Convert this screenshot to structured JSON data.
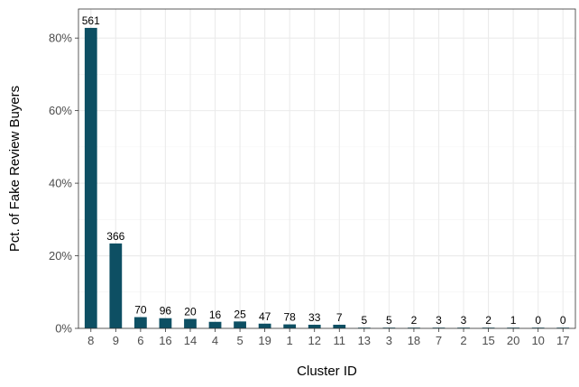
{
  "chart_data": {
    "type": "bar",
    "xlabel": "Cluster ID",
    "ylabel": "Pct. of Fake Review Buyers",
    "categories": [
      "8",
      "9",
      "6",
      "16",
      "14",
      "4",
      "5",
      "19",
      "1",
      "12",
      "11",
      "13",
      "3",
      "18",
      "7",
      "2",
      "15",
      "20",
      "10",
      "17"
    ],
    "values": [
      82.8,
      23.4,
      3.1,
      2.8,
      2.6,
      1.8,
      1.9,
      1.3,
      1.1,
      1.0,
      1.0,
      0.2,
      0.2,
      0.15,
      0.15,
      0.15,
      0.15,
      0.1,
      0.05,
      0.05
    ],
    "data_labels": [
      "561",
      "366",
      "70",
      "96",
      "20",
      "16",
      "25",
      "47",
      "78",
      "33",
      "7",
      "5",
      "5",
      "2",
      "3",
      "3",
      "2",
      "1",
      "0",
      "0"
    ],
    "ylim": [
      0,
      88
    ],
    "yticks": [
      0,
      20,
      40,
      60,
      80
    ],
    "ytick_labels": [
      "0%",
      "20%",
      "40%",
      "60%",
      "80%"
    ],
    "grid": true,
    "legend": "none",
    "bar_color": "#0d4f63"
  }
}
